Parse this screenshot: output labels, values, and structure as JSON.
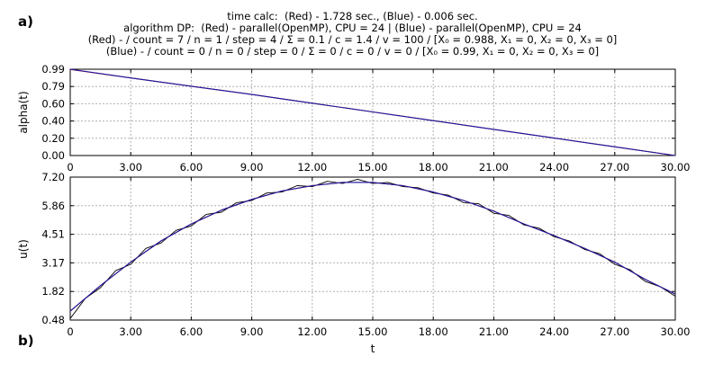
{
  "panel_labels": [
    "a)",
    "b)"
  ],
  "header": {
    "line1": "time calc:  (Red) - 1.728 sec., (Blue) - 0.006 sec.",
    "line2": "algorithm DP:  (Red) - parallel(OpenMP), CPU = 24 | (Blue) - parallel(OpenMP), CPU = 24",
    "line3": "(Red) - / count = 7 / n = 1 / step = 4 / Σ = 0.1 / c = 1.4 / v = 100 / [X₀ = 0.988, X₁ = 0, X₂ = 0, X₃ = 0]",
    "line4": "(Blue) - / count = 0 / n = 0 / step = 0 / Σ = 0 / c = 0 / v = 0 / [X₀ = 0.99, X₁ = 0, X₂ = 0, X₃ = 0]"
  },
  "colors": {
    "red": "#cc0000",
    "blue": "#1a1aa6",
    "noisy": "#000000",
    "grid": "#b0b0b0"
  },
  "chart_data": [
    {
      "type": "line",
      "ylabel": "alpha(t)",
      "xlabel": "",
      "xlim": [
        0,
        30
      ],
      "ylim": [
        0,
        0.99
      ],
      "x_ticks": [
        "0",
        "3.00",
        "6.00",
        "9.00",
        "12.00",
        "15.00",
        "18.00",
        "21.00",
        "24.00",
        "27.00",
        "30.00"
      ],
      "y_ticks": [
        "0.99",
        "0.79",
        "0.60",
        "0.40",
        "0.20",
        "0.00"
      ],
      "grid": true,
      "series": [
        {
          "color": "red",
          "x": [
            0,
            3,
            6,
            9,
            12,
            15,
            18,
            21,
            24,
            27,
            30
          ],
          "y": [
            0.988,
            0.89,
            0.795,
            0.7,
            0.6,
            0.5,
            0.4,
            0.3,
            0.2,
            0.1,
            0.0
          ]
        },
        {
          "color": "blue",
          "x": [
            0,
            3,
            6,
            9,
            12,
            15,
            18,
            21,
            24,
            27,
            30
          ],
          "y": [
            0.99,
            0.89,
            0.795,
            0.7,
            0.6,
            0.5,
            0.4,
            0.3,
            0.2,
            0.1,
            0.0
          ]
        }
      ]
    },
    {
      "type": "line",
      "ylabel": "u(t)",
      "xlabel": "t",
      "xlim": [
        0,
        30
      ],
      "ylim": [
        0.48,
        7.2
      ],
      "x_ticks": [
        "0",
        "3.00",
        "6.00",
        "9.00",
        "12.00",
        "15.00",
        "18.00",
        "21.00",
        "24.00",
        "27.00",
        "30.00"
      ],
      "y_ticks": [
        "7.20",
        "5.86",
        "4.51",
        "3.17",
        "1.82",
        "0.48"
      ],
      "grid": true,
      "series": [
        {
          "color": "red",
          "x": [
            0,
            1.5,
            3,
            4.5,
            6,
            7.5,
            9,
            10.5,
            12,
            13.5,
            15,
            16.5,
            18,
            19.5,
            21,
            22.5,
            24,
            25.5,
            27,
            28.5,
            30
          ],
          "y": [
            0.9,
            2.1,
            3.2,
            4.2,
            5.0,
            5.65,
            6.15,
            6.55,
            6.8,
            6.95,
            6.95,
            6.8,
            6.5,
            6.1,
            5.6,
            5.0,
            4.45,
            3.85,
            3.2,
            2.4,
            1.7
          ]
        },
        {
          "color": "blue",
          "x": [
            0,
            1.5,
            3,
            4.5,
            6,
            7.5,
            9,
            10.5,
            12,
            13.5,
            15,
            16.5,
            18,
            19.5,
            21,
            22.5,
            24,
            25.5,
            27,
            28.5,
            30
          ],
          "y": [
            0.9,
            2.1,
            3.2,
            4.2,
            5.0,
            5.65,
            6.15,
            6.55,
            6.8,
            6.95,
            6.95,
            6.8,
            6.5,
            6.1,
            5.6,
            5.0,
            4.45,
            3.85,
            3.2,
            2.4,
            1.7
          ]
        },
        {
          "color": "noisy",
          "x": [
            0,
            0.75,
            1.5,
            2.25,
            3,
            3.75,
            4.5,
            5.25,
            6,
            6.75,
            7.5,
            8.25,
            9,
            9.75,
            10.5,
            11.25,
            12,
            12.75,
            13.5,
            14.25,
            15,
            15.75,
            16.5,
            17.25,
            18,
            18.75,
            19.5,
            20.25,
            21,
            21.75,
            22.5,
            23.25,
            24,
            24.75,
            25.5,
            26.25,
            27,
            27.75,
            28.5,
            29.25,
            30
          ],
          "y": [
            0.55,
            1.5,
            2.0,
            2.8,
            3.1,
            3.85,
            4.1,
            4.7,
            4.9,
            5.45,
            5.55,
            6.0,
            6.1,
            6.45,
            6.5,
            6.8,
            6.75,
            7.0,
            6.9,
            7.1,
            6.9,
            6.95,
            6.75,
            6.7,
            6.45,
            6.35,
            6.0,
            5.95,
            5.5,
            5.4,
            4.95,
            4.8,
            4.4,
            4.2,
            3.8,
            3.6,
            3.1,
            2.85,
            2.3,
            2.05,
            1.6
          ]
        }
      ]
    }
  ]
}
